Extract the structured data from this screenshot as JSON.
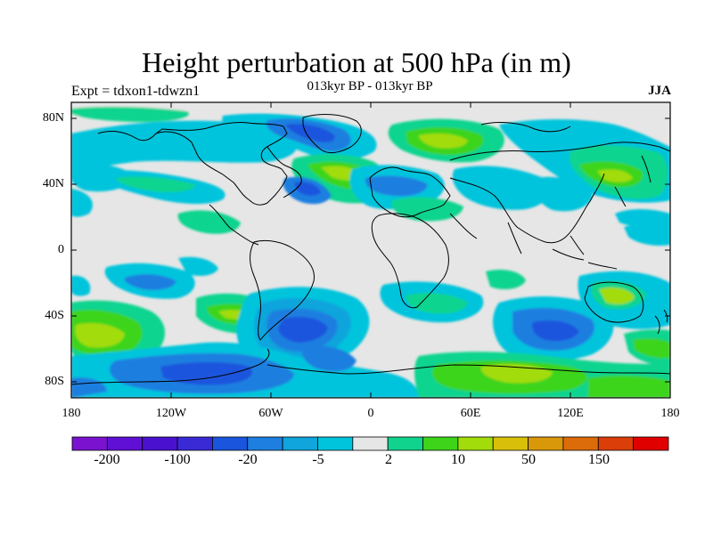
{
  "title": "Height perturbation at 500 hPa (in m)",
  "left_label": "Expt = tdxon1-tdwzn1",
  "center_label": "013kyr BP - 013kyr BP",
  "right_label": "JJA",
  "axes": {
    "lat_ticks": [
      "80N",
      "40N",
      "0",
      "40S",
      "80S"
    ],
    "lon_ticks": [
      "180",
      "120W",
      "60W",
      "0",
      "60E",
      "120E",
      "180"
    ]
  },
  "colorbar": {
    "colors": [
      "#7a12cf",
      "#6010d4",
      "#4a12cf",
      "#3a2ad6",
      "#1a55dd",
      "#1e7fe0",
      "#10a5dc",
      "#00c4dc",
      "#e6e6e6",
      "#10d48e",
      "#3ed41a",
      "#a2dc0a",
      "#d8c00a",
      "#d8980a",
      "#dc6c0a",
      "#dc3e0a",
      "#e00000"
    ],
    "labels": [
      "-200",
      "-100",
      "-20",
      "-5",
      "2",
      "10",
      "50",
      "150"
    ]
  }
}
